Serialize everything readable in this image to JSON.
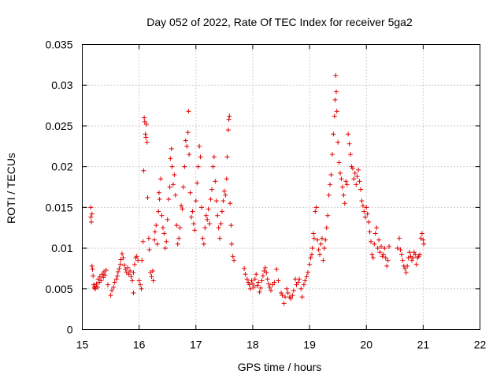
{
  "chart_data": {
    "type": "scatter",
    "title": "Day 052 of 2022, Rate Of TEC Index for receiver 5ga2",
    "xlabel": "GPS time / hours",
    "ylabel": "ROTI / TECUs",
    "xlim": [
      15,
      22
    ],
    "ylim": [
      0,
      0.035
    ],
    "xticks": [
      15,
      16,
      17,
      18,
      19,
      20,
      21,
      22
    ],
    "xtick_labels": [
      "15",
      "16",
      "17",
      "18",
      "19",
      "20",
      "21",
      "22"
    ],
    "yticks": [
      0,
      0.005,
      0.01,
      0.015,
      0.02,
      0.025,
      0.03,
      0.035
    ],
    "ytick_labels": [
      "0",
      "0.005",
      "0.01",
      "0.015",
      "0.02",
      "0.025",
      "0.03",
      "0.035"
    ],
    "grid": true,
    "marker": "+",
    "color": "#e00000",
    "series": [
      {
        "name": "ROTI",
        "points": [
          [
            15.15,
            0.015
          ],
          [
            15.15,
            0.0138
          ],
          [
            15.16,
            0.0132
          ],
          [
            15.17,
            0.0142
          ],
          [
            15.17,
            0.0078
          ],
          [
            15.18,
            0.0074
          ],
          [
            15.19,
            0.0066
          ],
          [
            15.2,
            0.0055
          ],
          [
            15.21,
            0.0051
          ],
          [
            15.22,
            0.0053
          ],
          [
            15.23,
            0.005
          ],
          [
            15.25,
            0.0056
          ],
          [
            15.27,
            0.0052
          ],
          [
            15.28,
            0.0062
          ],
          [
            15.3,
            0.0058
          ],
          [
            15.31,
            0.0065
          ],
          [
            15.33,
            0.006
          ],
          [
            15.35,
            0.0068
          ],
          [
            15.37,
            0.0064
          ],
          [
            15.38,
            0.0071
          ],
          [
            15.4,
            0.0067
          ],
          [
            15.42,
            0.0073
          ],
          [
            15.45,
            0.0055
          ],
          [
            15.5,
            0.0042
          ],
          [
            15.52,
            0.0048
          ],
          [
            15.55,
            0.0052
          ],
          [
            15.57,
            0.0058
          ],
          [
            15.6,
            0.0062
          ],
          [
            15.62,
            0.0066
          ],
          [
            15.63,
            0.0071
          ],
          [
            15.65,
            0.0075
          ],
          [
            15.67,
            0.008
          ],
          [
            15.68,
            0.0086
          ],
          [
            15.7,
            0.0093
          ],
          [
            15.72,
            0.0088
          ],
          [
            15.74,
            0.0079
          ],
          [
            15.76,
            0.0074
          ],
          [
            15.78,
            0.007
          ],
          [
            15.8,
            0.0076
          ],
          [
            15.82,
            0.0068
          ],
          [
            15.84,
            0.0072
          ],
          [
            15.86,
            0.0065
          ],
          [
            15.88,
            0.006
          ],
          [
            15.9,
            0.007
          ],
          [
            15.92,
            0.008
          ],
          [
            15.94,
            0.0088
          ],
          [
            15.96,
            0.009
          ],
          [
            15.98,
            0.0085
          ],
          [
            16.0,
            0.006
          ],
          [
            16.02,
            0.0055
          ],
          [
            16.04,
            0.005
          ],
          [
            15.9,
            0.0045
          ],
          [
            16.05,
            0.0085
          ],
          [
            16.07,
            0.0108
          ],
          [
            16.08,
            0.0195
          ],
          [
            16.09,
            0.026
          ],
          [
            16.1,
            0.0255
          ],
          [
            16.11,
            0.024
          ],
          [
            16.12,
            0.0236
          ],
          [
            16.13,
            0.0252
          ],
          [
            16.14,
            0.023
          ],
          [
            16.15,
            0.0162
          ],
          [
            16.17,
            0.0112
          ],
          [
            16.18,
            0.0098
          ],
          [
            16.2,
            0.007
          ],
          [
            16.22,
            0.0065
          ],
          [
            16.24,
            0.0072
          ],
          [
            16.25,
            0.006
          ],
          [
            16.27,
            0.011
          ],
          [
            16.28,
            0.012
          ],
          [
            16.3,
            0.0128
          ],
          [
            16.32,
            0.0105
          ],
          [
            16.34,
            0.0145
          ],
          [
            16.35,
            0.0168
          ],
          [
            16.36,
            0.016
          ],
          [
            16.38,
            0.0185
          ],
          [
            16.4,
            0.014
          ],
          [
            16.42,
            0.0125
          ],
          [
            16.44,
            0.0118
          ],
          [
            16.46,
            0.01
          ],
          [
            16.48,
            0.0108
          ],
          [
            16.5,
            0.0135
          ],
          [
            16.52,
            0.016
          ],
          [
            16.54,
            0.0175
          ],
          [
            16.55,
            0.021
          ],
          [
            16.57,
            0.0222
          ],
          [
            16.58,
            0.02
          ],
          [
            16.6,
            0.0178
          ],
          [
            16.62,
            0.019
          ],
          [
            16.64,
            0.0165
          ],
          [
            16.66,
            0.0128
          ],
          [
            16.68,
            0.0105
          ],
          [
            16.7,
            0.0112
          ],
          [
            16.72,
            0.0125
          ],
          [
            16.74,
            0.0152
          ],
          [
            16.76,
            0.0148
          ],
          [
            16.78,
            0.0175
          ],
          [
            16.8,
            0.02
          ],
          [
            16.82,
            0.0232
          ],
          [
            16.84,
            0.0225
          ],
          [
            16.86,
            0.0242
          ],
          [
            16.87,
            0.0268
          ],
          [
            16.88,
            0.0215
          ],
          [
            16.9,
            0.0168
          ],
          [
            16.92,
            0.0138
          ],
          [
            16.94,
            0.0145
          ],
          [
            16.96,
            0.013
          ],
          [
            16.98,
            0.0122
          ],
          [
            17.0,
            0.0158
          ],
          [
            17.02,
            0.018
          ],
          [
            17.04,
            0.02
          ],
          [
            17.06,
            0.0225
          ],
          [
            17.08,
            0.0212
          ],
          [
            17.1,
            0.015
          ],
          [
            17.12,
            0.0112
          ],
          [
            17.14,
            0.0105
          ],
          [
            17.16,
            0.0125
          ],
          [
            17.18,
            0.014
          ],
          [
            17.2,
            0.0135
          ],
          [
            17.22,
            0.0148
          ],
          [
            17.24,
            0.013
          ],
          [
            17.26,
            0.016
          ],
          [
            17.28,
            0.0172
          ],
          [
            17.3,
            0.02
          ],
          [
            17.32,
            0.0212
          ],
          [
            17.34,
            0.0182
          ],
          [
            17.36,
            0.0158
          ],
          [
            17.38,
            0.014
          ],
          [
            17.4,
            0.0125
          ],
          [
            17.42,
            0.0112
          ],
          [
            17.44,
            0.013
          ],
          [
            17.46,
            0.0145
          ],
          [
            17.48,
            0.0158
          ],
          [
            17.5,
            0.017
          ],
          [
            17.52,
            0.0165
          ],
          [
            17.54,
            0.0185
          ],
          [
            17.55,
            0.0212
          ],
          [
            17.57,
            0.0245
          ],
          [
            17.58,
            0.0258
          ],
          [
            17.59,
            0.0262
          ],
          [
            17.6,
            0.0155
          ],
          [
            17.62,
            0.0128
          ],
          [
            17.63,
            0.0105
          ],
          [
            17.65,
            0.009
          ],
          [
            17.67,
            0.0085
          ],
          [
            17.85,
            0.0075
          ],
          [
            17.87,
            0.0068
          ],
          [
            17.9,
            0.0062
          ],
          [
            17.92,
            0.0058
          ],
          [
            17.94,
            0.0055
          ],
          [
            17.96,
            0.005
          ],
          [
            17.98,
            0.006
          ],
          [
            18.0,
            0.0056
          ],
          [
            18.02,
            0.0052
          ],
          [
            18.04,
            0.0062
          ],
          [
            18.06,
            0.0068
          ],
          [
            18.08,
            0.0054
          ],
          [
            18.1,
            0.0058
          ],
          [
            18.12,
            0.0046
          ],
          [
            18.14,
            0.0051
          ],
          [
            18.16,
            0.006
          ],
          [
            18.18,
            0.0066
          ],
          [
            18.2,
            0.0072
          ],
          [
            18.22,
            0.0076
          ],
          [
            18.24,
            0.007
          ],
          [
            18.26,
            0.0062
          ],
          [
            18.28,
            0.0056
          ],
          [
            18.3,
            0.0052
          ],
          [
            18.32,
            0.0048
          ],
          [
            18.35,
            0.0055
          ],
          [
            18.38,
            0.0058
          ],
          [
            18.42,
            0.0074
          ],
          [
            18.45,
            0.006
          ],
          [
            18.5,
            0.0045
          ],
          [
            18.52,
            0.0042
          ],
          [
            18.55,
            0.0032
          ],
          [
            18.57,
            0.004
          ],
          [
            18.6,
            0.005
          ],
          [
            18.62,
            0.0045
          ],
          [
            18.65,
            0.004
          ],
          [
            18.67,
            0.0038
          ],
          [
            18.7,
            0.0042
          ],
          [
            18.72,
            0.0048
          ],
          [
            18.75,
            0.0062
          ],
          [
            18.77,
            0.0055
          ],
          [
            18.8,
            0.0058
          ],
          [
            18.82,
            0.0062
          ],
          [
            18.85,
            0.005
          ],
          [
            18.87,
            0.004
          ],
          [
            18.9,
            0.0055
          ],
          [
            18.92,
            0.006
          ],
          [
            18.95,
            0.0065
          ],
          [
            18.97,
            0.007
          ],
          [
            19.0,
            0.008
          ],
          [
            19.02,
            0.0088
          ],
          [
            19.04,
            0.0092
          ],
          [
            19.05,
            0.01
          ],
          [
            19.07,
            0.0118
          ],
          [
            19.08,
            0.0112
          ],
          [
            19.1,
            0.0145
          ],
          [
            19.12,
            0.015
          ],
          [
            19.14,
            0.011
          ],
          [
            19.16,
            0.0098
          ],
          [
            19.18,
            0.0092
          ],
          [
            19.2,
            0.0105
          ],
          [
            19.22,
            0.0112
          ],
          [
            19.24,
            0.0085
          ],
          [
            19.26,
            0.01
          ],
          [
            19.28,
            0.011
          ],
          [
            19.3,
            0.0125
          ],
          [
            19.32,
            0.014
          ],
          [
            19.34,
            0.0165
          ],
          [
            19.36,
            0.0178
          ],
          [
            19.38,
            0.019
          ],
          [
            19.4,
            0.0215
          ],
          [
            19.42,
            0.024
          ],
          [
            19.44,
            0.0262
          ],
          [
            19.45,
            0.0282
          ],
          [
            19.46,
            0.0312
          ],
          [
            19.47,
            0.0292
          ],
          [
            19.48,
            0.0268
          ],
          [
            19.5,
            0.023
          ],
          [
            19.52,
            0.0205
          ],
          [
            19.54,
            0.0192
          ],
          [
            19.56,
            0.0185
          ],
          [
            19.58,
            0.0175
          ],
          [
            19.6,
            0.0165
          ],
          [
            19.62,
            0.0155
          ],
          [
            19.64,
            0.0182
          ],
          [
            19.66,
            0.0178
          ],
          [
            19.68,
            0.024
          ],
          [
            19.7,
            0.0228
          ],
          [
            19.72,
            0.0215
          ],
          [
            19.74,
            0.02
          ],
          [
            19.76,
            0.0198
          ],
          [
            19.78,
            0.0185
          ],
          [
            19.8,
            0.0192
          ],
          [
            19.82,
            0.0178
          ],
          [
            19.84,
            0.0188
          ],
          [
            19.86,
            0.0196
          ],
          [
            19.88,
            0.0182
          ],
          [
            19.9,
            0.0172
          ],
          [
            19.92,
            0.0158
          ],
          [
            19.94,
            0.0152
          ],
          [
            19.96,
            0.0145
          ],
          [
            19.98,
            0.0138
          ],
          [
            20.0,
            0.015
          ],
          [
            20.02,
            0.0142
          ],
          [
            20.04,
            0.0132
          ],
          [
            20.06,
            0.012
          ],
          [
            20.08,
            0.0108
          ],
          [
            20.1,
            0.0092
          ],
          [
            20.12,
            0.0088
          ],
          [
            20.14,
            0.0105
          ],
          [
            20.16,
            0.0118
          ],
          [
            20.18,
            0.0125
          ],
          [
            20.2,
            0.01
          ],
          [
            20.22,
            0.011
          ],
          [
            20.24,
            0.0095
          ],
          [
            20.26,
            0.0102
          ],
          [
            20.28,
            0.009
          ],
          [
            20.3,
            0.0092
          ],
          [
            20.32,
            0.01
          ],
          [
            20.34,
            0.0088
          ],
          [
            20.36,
            0.0078
          ],
          [
            20.38,
            0.0085
          ],
          [
            20.4,
            0.0102
          ],
          [
            20.55,
            0.01
          ],
          [
            20.58,
            0.0112
          ],
          [
            20.6,
            0.0098
          ],
          [
            20.62,
            0.0092
          ],
          [
            20.64,
            0.0085
          ],
          [
            20.66,
            0.0078
          ],
          [
            20.68,
            0.0075
          ],
          [
            20.7,
            0.007
          ],
          [
            20.72,
            0.0078
          ],
          [
            20.74,
            0.0088
          ],
          [
            20.76,
            0.0095
          ],
          [
            20.78,
            0.009
          ],
          [
            20.8,
            0.0085
          ],
          [
            20.82,
            0.0088
          ],
          [
            20.84,
            0.0095
          ],
          [
            20.86,
            0.0092
          ],
          [
            20.88,
            0.008
          ],
          [
            20.9,
            0.0088
          ],
          [
            20.92,
            0.009
          ],
          [
            20.94,
            0.0092
          ],
          [
            20.96,
            0.0112
          ],
          [
            20.98,
            0.0118
          ],
          [
            21.0,
            0.011
          ],
          [
            21.01,
            0.0105
          ]
        ]
      }
    ]
  }
}
